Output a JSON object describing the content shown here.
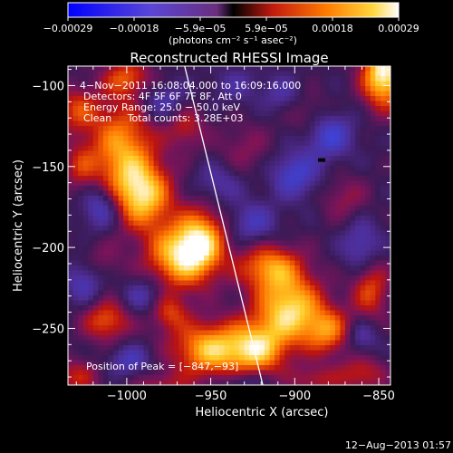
{
  "colorbar": {
    "ticks": [
      "−0.00029",
      "−0.00018",
      "−5.9e−05",
      "5.9e−05",
      "0.00018",
      "0.00029"
    ],
    "units": "(photons cm⁻² s⁻¹ asec⁻²)",
    "range": [
      -0.00029,
      0.00029
    ]
  },
  "chart_data": {
    "type": "heatmap",
    "title": "Reconstructed RHESSI Image",
    "xlabel": "Heliocentric X (arcsec)",
    "ylabel": "Heliocentric Y (arcsec)",
    "xlim": [
      -1035,
      -843
    ],
    "ylim": [
      -285,
      -88
    ],
    "xticks": [
      -1000,
      -950,
      -900,
      -850
    ],
    "xtick_labels": [
      "−1000",
      "−950",
      "−900",
      "−850"
    ],
    "yticks": [
      -100,
      -150,
      -200,
      -250
    ],
    "ytick_labels": [
      "−100",
      "−150",
      "−200",
      "−250"
    ],
    "annotations": [
      "4−Nov−2011 16:08:04.000 to 16:09:16.000",
      "Detectors: 4F 5F 6F 7F 8F, Att 0",
      "Energy Range: 25.0 − 50.0 keV",
      "Clean     Total counts: 3.28E+03"
    ],
    "peak_label": "Position of Peak = [−847,−93]",
    "peak_position": [
      -847,
      -93
    ],
    "limb_line": [
      [
        -966,
        -86
      ],
      [
        -919,
        -285
      ]
    ],
    "blobs": [
      {
        "x": -1003,
        "y": -140,
        "v": 0.0002,
        "sx": 14,
        "sy": 22
      },
      {
        "x": -990,
        "y": -168,
        "v": 0.00022,
        "sx": 12,
        "sy": 14
      },
      {
        "x": -968,
        "y": -205,
        "v": 0.00024,
        "sx": 14,
        "sy": 14
      },
      {
        "x": -955,
        "y": -195,
        "v": 0.00018,
        "sx": 10,
        "sy": 14
      },
      {
        "x": -950,
        "y": -263,
        "v": 0.00023,
        "sx": 16,
        "sy": 12
      },
      {
        "x": -903,
        "y": -238,
        "v": 0.00025,
        "sx": 14,
        "sy": 15
      },
      {
        "x": -915,
        "y": -212,
        "v": 0.00018,
        "sx": 13,
        "sy": 10
      },
      {
        "x": -922,
        "y": -263,
        "v": 0.0002,
        "sx": 12,
        "sy": 12
      },
      {
        "x": -880,
        "y": -252,
        "v": 0.00016,
        "sx": 10,
        "sy": 10
      },
      {
        "x": -847,
        "y": -93,
        "v": 0.00029,
        "sx": 9,
        "sy": 14
      },
      {
        "x": -855,
        "y": -225,
        "v": 0.00014,
        "sx": 8,
        "sy": 14
      },
      {
        "x": -1030,
        "y": -115,
        "v": 0.00012,
        "sx": 9,
        "sy": 10
      },
      {
        "x": -1012,
        "y": -245,
        "v": 0.00015,
        "sx": 10,
        "sy": 9
      },
      {
        "x": -1000,
        "y": -95,
        "v": 0.00013,
        "sx": 10,
        "sy": 8
      },
      {
        "x": -965,
        "y": -125,
        "v": 0.0001,
        "sx": 8,
        "sy": 10
      },
      {
        "x": -1030,
        "y": -280,
        "v": 0.0001,
        "sx": 10,
        "sy": 8
      },
      {
        "x": -860,
        "y": -278,
        "v": 0.00011,
        "sx": 10,
        "sy": 8
      },
      {
        "x": -888,
        "y": -282,
        "v": 9e-05,
        "sx": 10,
        "sy": 6
      },
      {
        "x": -870,
        "y": -170,
        "v": 7e-05,
        "sx": 10,
        "sy": 10
      },
      {
        "x": -930,
        "y": -140,
        "v": 6e-05,
        "sx": 12,
        "sy": 12
      },
      {
        "x": -890,
        "y": -120,
        "v": 7e-05,
        "sx": 10,
        "sy": 10
      },
      {
        "x": -975,
        "y": -240,
        "v": 0.00012,
        "sx": 8,
        "sy": 8
      },
      {
        "x": -980,
        "y": -285,
        "v": 8e-05,
        "sx": 12,
        "sy": 6
      },
      {
        "x": -1018,
        "y": -210,
        "v": 7e-05,
        "sx": 10,
        "sy": 10
      },
      {
        "x": -1015,
        "y": -175,
        "v": -0.00014,
        "sx": 8,
        "sy": 10
      },
      {
        "x": -1025,
        "y": -220,
        "v": -0.00012,
        "sx": 8,
        "sy": 10
      },
      {
        "x": -990,
        "y": -230,
        "v": -9e-05,
        "sx": 9,
        "sy": 8
      },
      {
        "x": -978,
        "y": -110,
        "v": -0.0001,
        "sx": 10,
        "sy": 8
      },
      {
        "x": -945,
        "y": -160,
        "v": -8e-05,
        "sx": 10,
        "sy": 9
      },
      {
        "x": -900,
        "y": -155,
        "v": -0.00013,
        "sx": 10,
        "sy": 10
      },
      {
        "x": -880,
        "y": -130,
        "v": -0.00015,
        "sx": 10,
        "sy": 10
      },
      {
        "x": -860,
        "y": -200,
        "v": -0.00011,
        "sx": 8,
        "sy": 12
      },
      {
        "x": -925,
        "y": -185,
        "v": -0.0001,
        "sx": 10,
        "sy": 9
      },
      {
        "x": -998,
        "y": -270,
        "v": -0.0001,
        "sx": 9,
        "sy": 7
      },
      {
        "x": -930,
        "y": -283,
        "v": -8e-05,
        "sx": 10,
        "sy": 6
      },
      {
        "x": -935,
        "y": -100,
        "v": -6e-05,
        "sx": 10,
        "sy": 8
      },
      {
        "x": -860,
        "y": -255,
        "v": -9e-05,
        "sx": 7,
        "sy": 8
      },
      {
        "x": -1028,
        "y": -150,
        "v": 9e-05,
        "sx": 7,
        "sy": 10
      },
      {
        "x": -908,
        "y": -105,
        "v": -7e-05,
        "sx": 8,
        "sy": 8
      }
    ],
    "dark_spot": {
      "x": -884,
      "y": -146
    }
  },
  "footer": {
    "timestamp": "12−Aug−2013 01:57"
  }
}
